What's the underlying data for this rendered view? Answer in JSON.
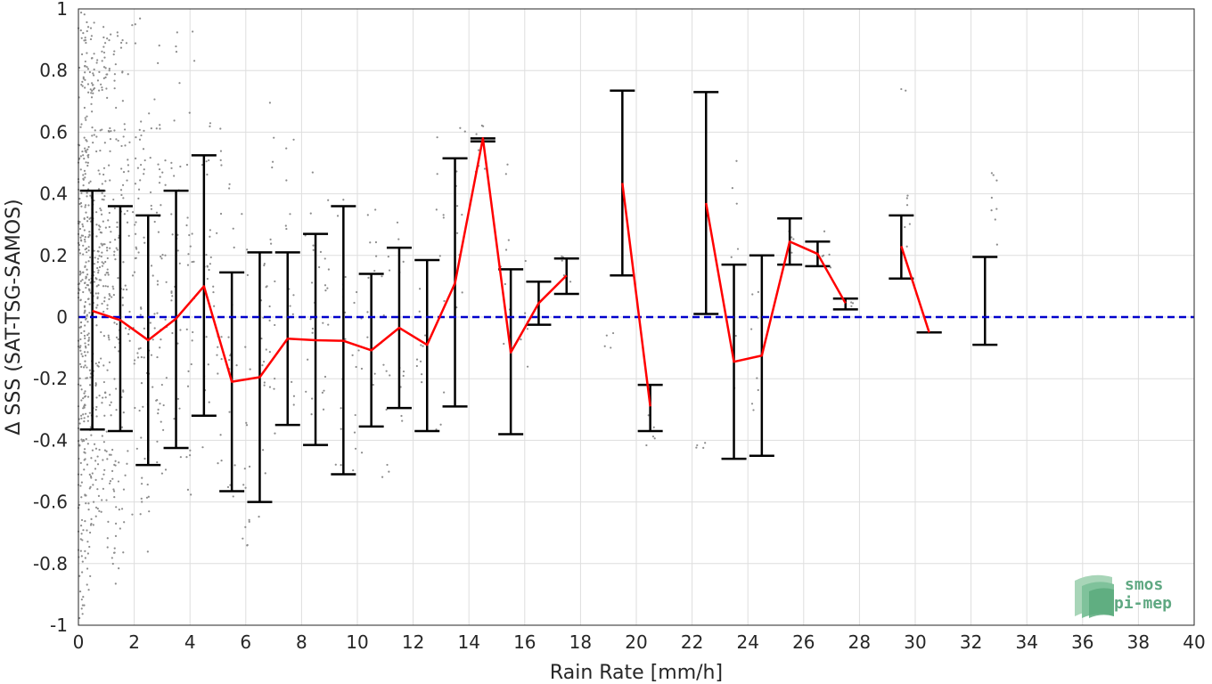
{
  "chart_data": {
    "type": "scatter",
    "title": "",
    "xlabel": "Rain Rate [mm/h]",
    "ylabel": "Δ SSS (SAT-TSG-SAMOS)",
    "xlim": [
      0,
      40
    ],
    "ylim": [
      -1,
      1
    ],
    "xticks": [
      "0",
      "2",
      "4",
      "6",
      "8",
      "10",
      "12",
      "14",
      "16",
      "18",
      "20",
      "22",
      "24",
      "26",
      "28",
      "30",
      "32",
      "34",
      "36",
      "38",
      "40"
    ],
    "yticks": [
      "-1",
      "-0.8",
      "-0.6",
      "-0.4",
      "-0.2",
      "0",
      "0.2",
      "0.4",
      "0.6",
      "0.8",
      "1"
    ],
    "grid": true,
    "reference_line": {
      "y": 0,
      "color": "#0000cc",
      "style": "dashed"
    },
    "scatter_color": "#8c8c8c",
    "mean_line_color": "#ff0000",
    "errorbar_color": "#000000",
    "mean_segments": [
      [
        [
          0.5,
          0.02
        ],
        [
          1.5,
          -0.01
        ],
        [
          2.5,
          -0.075
        ],
        [
          3.5,
          -0.005
        ],
        [
          4.5,
          0.1
        ],
        [
          5.5,
          -0.21
        ],
        [
          6.5,
          -0.195
        ],
        [
          7.5,
          -0.07
        ],
        [
          8.5,
          -0.075
        ],
        [
          9.5,
          -0.077
        ],
        [
          10.5,
          -0.108
        ],
        [
          11.5,
          -0.035
        ],
        [
          12.5,
          -0.09
        ],
        [
          13.5,
          0.11
        ],
        [
          14.5,
          0.58
        ],
        [
          15.5,
          -0.115
        ],
        [
          16.5,
          0.045
        ],
        [
          17.5,
          0.135
        ]
      ],
      [
        [
          19.5,
          0.435
        ],
        [
          20.5,
          -0.29
        ]
      ],
      [
        [
          22.5,
          0.37
        ],
        [
          23.5,
          -0.145
        ],
        [
          24.5,
          -0.125
        ],
        [
          25.5,
          0.245
        ],
        [
          26.5,
          0.205
        ],
        [
          27.5,
          0.045
        ]
      ],
      [
        [
          29.5,
          0.23
        ],
        [
          30.5,
          -0.05
        ]
      ]
    ],
    "error_bars": [
      {
        "x": 0.5,
        "low": -0.365,
        "high": 0.41
      },
      {
        "x": 1.5,
        "low": -0.37,
        "high": 0.36
      },
      {
        "x": 2.5,
        "low": -0.48,
        "high": 0.33
      },
      {
        "x": 3.5,
        "low": -0.425,
        "high": 0.41
      },
      {
        "x": 4.5,
        "low": -0.32,
        "high": 0.525
      },
      {
        "x": 5.5,
        "low": -0.565,
        "high": 0.145
      },
      {
        "x": 6.5,
        "low": -0.6,
        "high": 0.21
      },
      {
        "x": 7.5,
        "low": -0.35,
        "high": 0.21
      },
      {
        "x": 8.5,
        "low": -0.415,
        "high": 0.27
      },
      {
        "x": 9.5,
        "low": -0.51,
        "high": 0.36
      },
      {
        "x": 10.5,
        "low": -0.355,
        "high": 0.14
      },
      {
        "x": 11.5,
        "low": -0.295,
        "high": 0.225
      },
      {
        "x": 12.5,
        "low": -0.37,
        "high": 0.185
      },
      {
        "x": 13.5,
        "low": -0.29,
        "high": 0.515
      },
      {
        "x": 14.5,
        "low": 0.57,
        "high": 0.58
      },
      {
        "x": 15.5,
        "low": -0.38,
        "high": 0.155
      },
      {
        "x": 16.5,
        "low": -0.025,
        "high": 0.115
      },
      {
        "x": 17.5,
        "low": 0.075,
        "high": 0.19
      },
      {
        "x": 19.5,
        "low": 0.135,
        "high": 0.735
      },
      {
        "x": 20.5,
        "low": -0.37,
        "high": -0.22
      },
      {
        "x": 22.5,
        "low": 0.01,
        "high": 0.73
      },
      {
        "x": 23.5,
        "low": -0.46,
        "high": 0.17
      },
      {
        "x": 24.5,
        "low": -0.45,
        "high": 0.2
      },
      {
        "x": 25.5,
        "low": 0.17,
        "high": 0.32
      },
      {
        "x": 26.5,
        "low": 0.165,
        "high": 0.245
      },
      {
        "x": 27.5,
        "low": 0.025,
        "high": 0.06
      },
      {
        "x": 29.5,
        "low": 0.125,
        "high": 0.33
      },
      {
        "x": 30.5,
        "low": -0.05,
        "high": -0.05
      },
      {
        "x": 32.5,
        "low": -0.09,
        "high": 0.195
      }
    ],
    "scatter_clusters": [
      {
        "x": 0.1,
        "low": -1.0,
        "high": 1.0,
        "n": 140
      },
      {
        "x": 0.25,
        "low": -0.95,
        "high": 1.0,
        "n": 120
      },
      {
        "x": 0.4,
        "low": -0.75,
        "high": 0.98,
        "n": 100
      },
      {
        "x": 0.6,
        "low": -0.7,
        "high": 0.9,
        "n": 80
      },
      {
        "x": 0.8,
        "low": -0.65,
        "high": 0.95,
        "n": 70
      },
      {
        "x": 1.0,
        "low": -0.6,
        "high": 0.98,
        "n": 60
      },
      {
        "x": 1.2,
        "low": -0.85,
        "high": 0.98,
        "n": 55
      },
      {
        "x": 1.45,
        "low": -0.9,
        "high": 0.95,
        "n": 50
      },
      {
        "x": 1.7,
        "low": -0.7,
        "high": 0.9,
        "n": 40
      },
      {
        "x": 2.1,
        "low": -0.65,
        "high": 0.98,
        "n": 38
      },
      {
        "x": 2.4,
        "low": -0.85,
        "high": 0.7,
        "n": 35
      },
      {
        "x": 2.75,
        "low": -0.6,
        "high": 0.95,
        "n": 32
      },
      {
        "x": 3.0,
        "low": -0.55,
        "high": 0.55,
        "n": 28
      },
      {
        "x": 3.5,
        "low": -0.55,
        "high": 0.98,
        "n": 28
      },
      {
        "x": 4.0,
        "low": -0.6,
        "high": 0.97,
        "n": 25
      },
      {
        "x": 4.6,
        "low": -0.45,
        "high": 0.75,
        "n": 22
      },
      {
        "x": 5.0,
        "low": -0.5,
        "high": 0.65,
        "n": 18
      },
      {
        "x": 5.5,
        "low": -0.7,
        "high": 0.45,
        "n": 18
      },
      {
        "x": 6.0,
        "low": -0.78,
        "high": 0.35,
        "n": 18
      },
      {
        "x": 6.6,
        "low": -0.65,
        "high": 0.3,
        "n": 16
      },
      {
        "x": 7.0,
        "low": -0.4,
        "high": 0.85,
        "n": 15
      },
      {
        "x": 7.6,
        "low": -0.4,
        "high": 0.6,
        "n": 15
      },
      {
        "x": 8.3,
        "low": -0.45,
        "high": 0.5,
        "n": 14
      },
      {
        "x": 8.8,
        "low": -0.3,
        "high": 0.6,
        "n": 14
      },
      {
        "x": 9.4,
        "low": -0.55,
        "high": 0.4,
        "n": 14
      },
      {
        "x": 10.0,
        "low": -0.5,
        "high": 0.2,
        "n": 12
      },
      {
        "x": 10.5,
        "low": -0.3,
        "high": 0.5,
        "n": 12
      },
      {
        "x": 11.0,
        "low": -0.6,
        "high": 0.25,
        "n": 12
      },
      {
        "x": 11.5,
        "low": -0.35,
        "high": 0.35,
        "n": 10
      },
      {
        "x": 12.3,
        "low": -0.35,
        "high": 0.15,
        "n": 10
      },
      {
        "x": 13.0,
        "low": -0.45,
        "high": 0.6,
        "n": 10
      },
      {
        "x": 13.7,
        "low": -0.2,
        "high": 0.65,
        "n": 10
      },
      {
        "x": 14.4,
        "low": 0.45,
        "high": 0.65,
        "n": 8
      },
      {
        "x": 15.3,
        "low": -0.35,
        "high": 0.55,
        "n": 8
      },
      {
        "x": 16.0,
        "low": -0.2,
        "high": 0.2,
        "n": 6
      },
      {
        "x": 17.5,
        "low": 0.1,
        "high": 0.2,
        "n": 5
      },
      {
        "x": 19.0,
        "low": -0.1,
        "high": -0.05,
        "n": 4
      },
      {
        "x": 20.5,
        "low": -0.45,
        "high": -0.25,
        "n": 6
      },
      {
        "x": 22.3,
        "low": -0.45,
        "high": -0.4,
        "n": 4
      },
      {
        "x": 23.5,
        "low": -0.35,
        "high": 0.74,
        "n": 7
      },
      {
        "x": 24.2,
        "low": -0.45,
        "high": 0.6,
        "n": 8
      },
      {
        "x": 25.5,
        "low": 0.2,
        "high": 0.3,
        "n": 4
      },
      {
        "x": 26.8,
        "low": 0.1,
        "high": 0.3,
        "n": 6
      },
      {
        "x": 27.6,
        "low": 0.02,
        "high": 0.07,
        "n": 4
      },
      {
        "x": 29.5,
        "low": 0.73,
        "high": 0.74,
        "n": 2
      },
      {
        "x": 29.8,
        "low": 0.15,
        "high": 0.4,
        "n": 6
      },
      {
        "x": 32.8,
        "low": 0.0,
        "high": 0.47,
        "n": 8
      }
    ]
  },
  "logo": {
    "line1": "smos",
    "line2": "pi-mep"
  }
}
